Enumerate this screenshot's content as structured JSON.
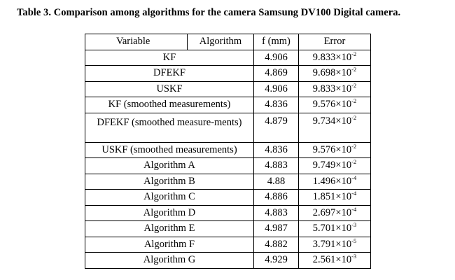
{
  "caption": "Table 3. Comparison among algorithms for the camera Samsung DV100 Digital camera.",
  "headers": {
    "variable": "Variable",
    "algorithm": "Algorithm",
    "f": "f (mm)",
    "error": "Error"
  },
  "rows": [
    {
      "name": "KF",
      "f": "4.906",
      "err_base": "9.833×10",
      "err_exp": "-2"
    },
    {
      "name": "DFEKF",
      "f": "4.869",
      "err_base": "9.698×10",
      "err_exp": "-2"
    },
    {
      "name": "USKF",
      "f": "4.906",
      "err_base": "9.833×10",
      "err_exp": "-2"
    },
    {
      "name": "KF (smoothed measurements)",
      "f": "4.836",
      "err_base": "9.576×10",
      "err_exp": "-2"
    },
    {
      "name": "DFEKF (smoothed measure-ments)",
      "f": "4.879",
      "err_base": "9.734×10",
      "err_exp": "-2"
    },
    {
      "name": "USKF (smoothed measurements)",
      "f": "4.836",
      "err_base": "9.576×10",
      "err_exp": "-2"
    },
    {
      "name": "Algorithm A",
      "f": "4.883",
      "err_base": "9.749×10",
      "err_exp": "-2"
    },
    {
      "name": "Algorithm B",
      "f": "4.88",
      "err_base": "1.496×10",
      "err_exp": "-4"
    },
    {
      "name": "Algorithm C",
      "f": "4.886",
      "err_base": "1.851×10",
      "err_exp": "-4"
    },
    {
      "name": "Algorithm D",
      "f": "4.883",
      "err_base": "2.697×10",
      "err_exp": "-4"
    },
    {
      "name": "Algorithm E",
      "f": "4.987",
      "err_base": "5.701×10",
      "err_exp": "-3"
    },
    {
      "name": "Algorithm F",
      "f": "4.882",
      "err_base": "3.791×10",
      "err_exp": "-5"
    },
    {
      "name": "Algorithm G",
      "f": "4.929",
      "err_base": "2.561×10",
      "err_exp": "-3"
    }
  ]
}
